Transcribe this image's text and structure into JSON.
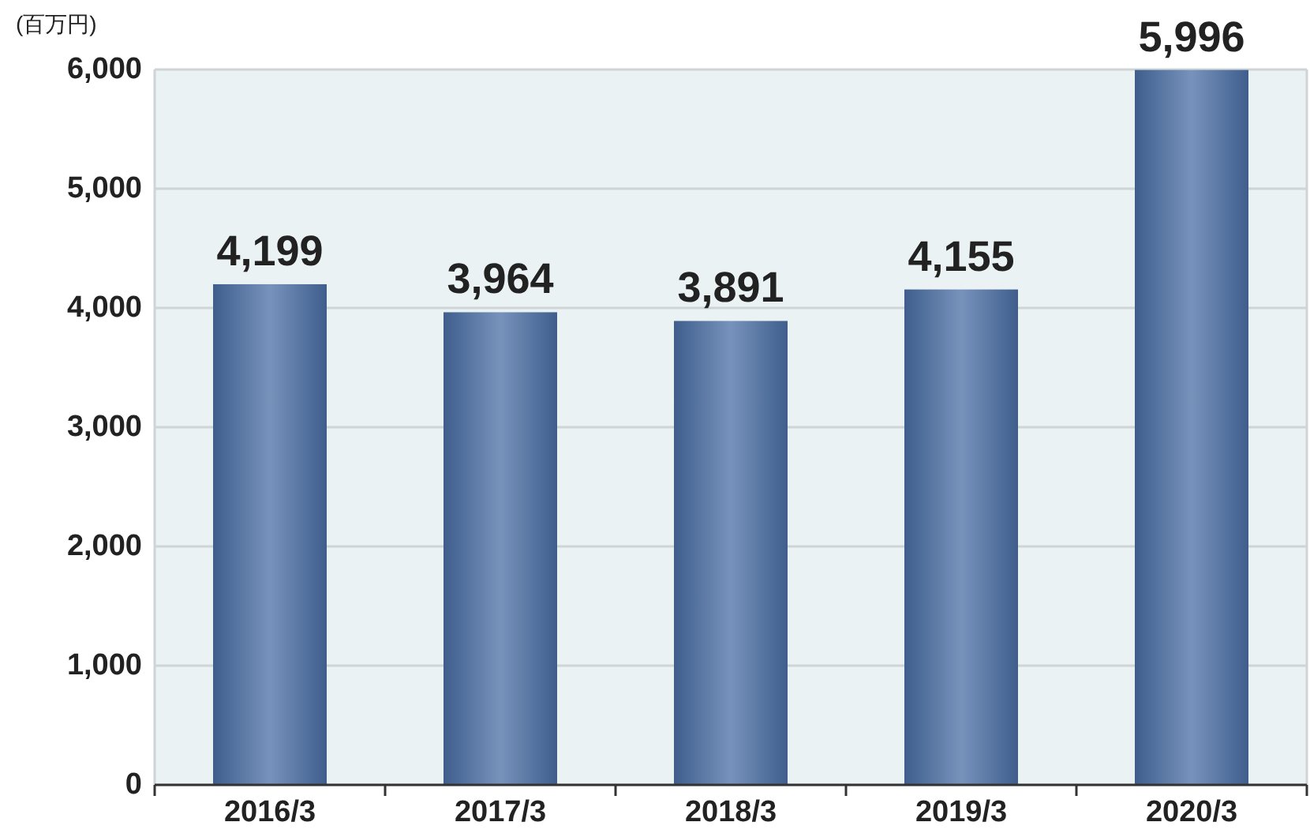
{
  "chart_data": {
    "type": "bar",
    "ylabel": "(百万円)",
    "categories": [
      "2016/3",
      "2017/3",
      "2018/3",
      "2019/3",
      "2020/3"
    ],
    "values": [
      4199,
      3964,
      3891,
      4155,
      5996
    ],
    "value_labels": [
      "4,199",
      "3,964",
      "3,891",
      "4,155",
      "5,996"
    ],
    "color": "#4a6fa5",
    "ylim": [
      0,
      6000
    ],
    "yticks": [
      0,
      {
        "value": 1000,
        "label": "1,000"
      },
      {
        "value": 2000,
        "label": "2,000"
      },
      {
        "value": 3000,
        "label": "3,000"
      },
      {
        "value": 4000,
        "label": "4,000"
      },
      {
        "value": 5000,
        "label": "5,000"
      },
      {
        "value": 6000,
        "label": "6,000"
      }
    ],
    "grid": "y"
  }
}
